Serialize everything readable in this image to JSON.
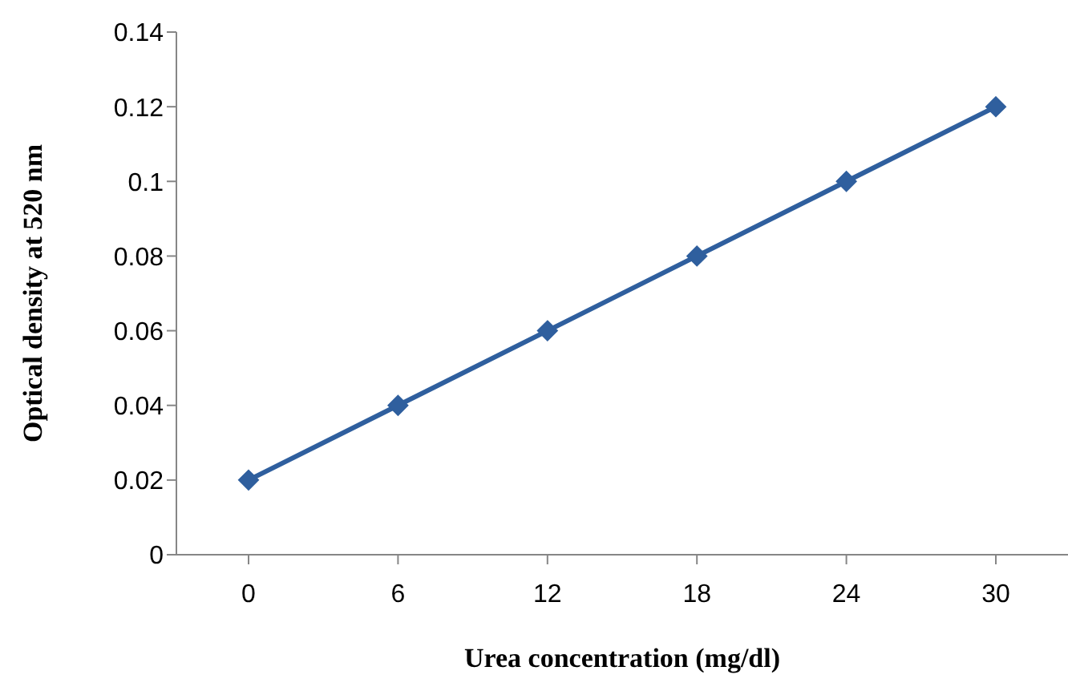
{
  "chart_data": {
    "type": "line",
    "xlabel": "Urea concentration (mg/dl)",
    "ylabel": "Optical density at 520 nm",
    "categories": [
      "0",
      "6",
      "12",
      "18",
      "24",
      "30"
    ],
    "series": [
      {
        "color": "#2f5f9e",
        "values": [
          0.02,
          0.04,
          0.06,
          0.08,
          0.1,
          0.12
        ]
      }
    ],
    "ylim": [
      0,
      0.14
    ],
    "yticks": [
      0,
      0.02,
      0.04,
      0.06,
      0.08,
      0.1,
      0.12,
      0.14
    ],
    "grid": false,
    "legend": false,
    "marker": "diamond",
    "line_style": "solid"
  }
}
